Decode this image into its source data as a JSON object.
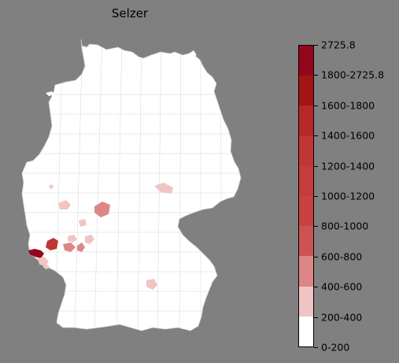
{
  "title": "Selzer",
  "legend": {
    "colors": [
      "#ffffff",
      "#f1c4c4",
      "#de8585",
      "#cf5252",
      "#cc4848",
      "#c94141",
      "#c63b3b",
      "#c23535",
      "#bd2e2e",
      "#b82727",
      "#b01f1f",
      "#a51414",
      "#94061c"
    ],
    "labels": [
      "0-200",
      "200-400",
      "400-600",
      "600-800",
      "800-1000",
      "1000-1200",
      "1200-1400",
      "1400-1600",
      "1600-1800",
      "1800-2725.8",
      "2725.8"
    ]
  },
  "map": {
    "country": "Germany",
    "fill_default": "#ffffff",
    "border_color": "#bbbbbb"
  }
}
